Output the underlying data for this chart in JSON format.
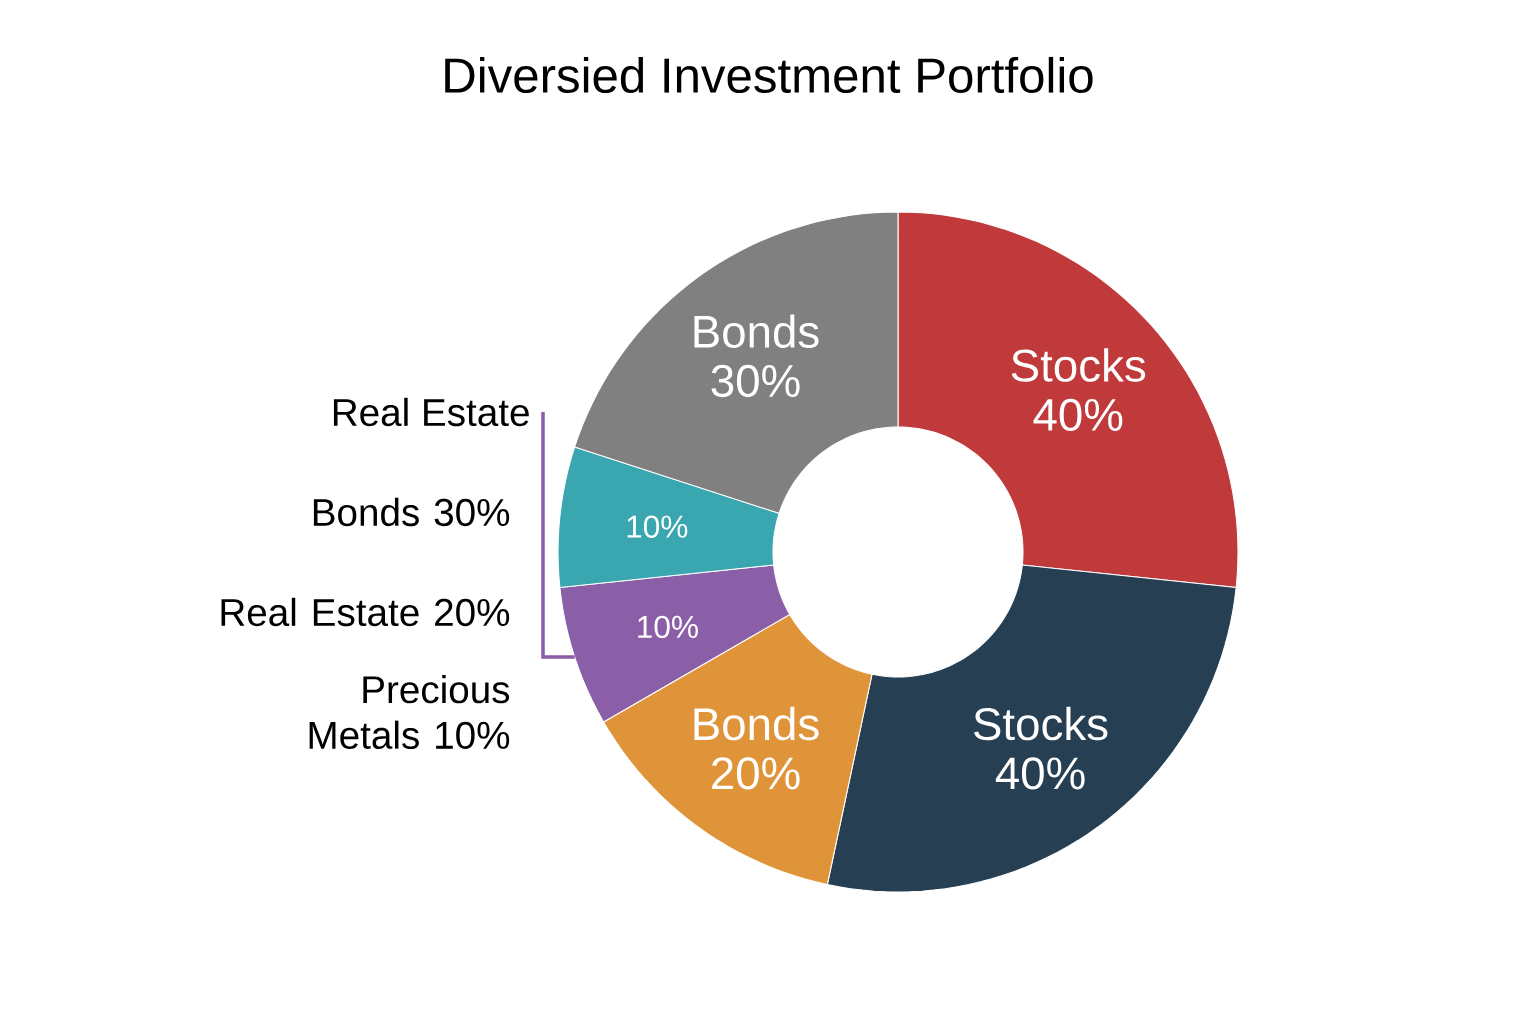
{
  "chart_data": {
    "type": "donut",
    "title": "Diversied Investment Portfolio",
    "categories": [
      "Stocks",
      "Stocks",
      "Bonds",
      "Real Estate",
      null,
      "Bonds"
    ],
    "values": [
      40,
      40,
      20,
      10,
      10,
      30
    ],
    "colors": [
      "#c0393b",
      "#263f52",
      "#e0943a",
      "#8a5fa8",
      "#3aa7b0",
      "#808080"
    ],
    "value_labels": [
      "40%",
      "40%",
      "20%",
      "10%",
      "10%",
      "30%"
    ],
    "annotations": [
      "Bonds 30%",
      "Real Estate 20%",
      "Precious Metals 10%"
    ]
  }
}
